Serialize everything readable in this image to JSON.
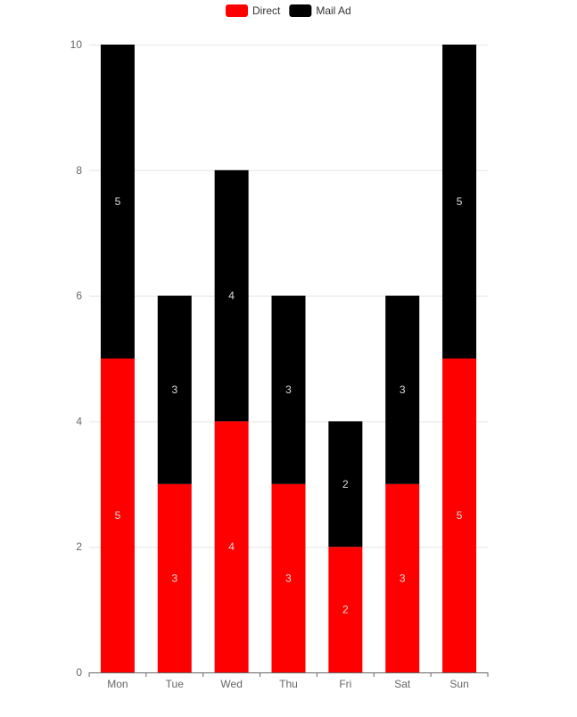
{
  "chart_data": {
    "type": "bar",
    "stacked": true,
    "categories": [
      "Mon",
      "Tue",
      "Wed",
      "Thu",
      "Fri",
      "Sat",
      "Sun"
    ],
    "series": [
      {
        "name": "Direct",
        "color": "#ff0000",
        "values": [
          5,
          3,
          4,
          3,
          2,
          3,
          5
        ]
      },
      {
        "name": "Mail Ad",
        "color": "#000000",
        "values": [
          5,
          3,
          4,
          3,
          2,
          3,
          5
        ]
      }
    ],
    "ylim": [
      0,
      10
    ],
    "y_ticks": [
      0,
      2,
      4,
      6,
      8,
      10
    ],
    "grid": true,
    "legend_position": "top-center",
    "data_labels": true
  }
}
